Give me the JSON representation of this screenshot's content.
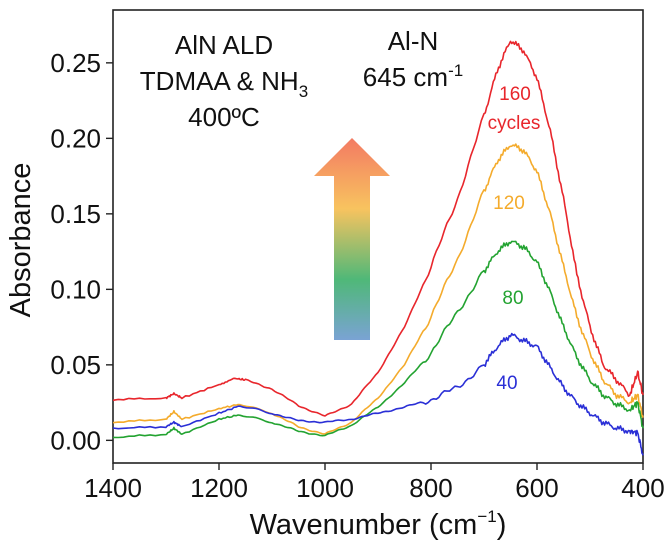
{
  "chart_data": {
    "type": "line",
    "xlabel": "Wavenumber (cm",
    "xlabel_sup": "−1",
    "xlabel_close": ")",
    "ylabel": "Absorbance",
    "xlim": [
      1400,
      400
    ],
    "ylim": [
      -0.015,
      0.285
    ],
    "x_reversed": true,
    "xticks": [
      1400,
      1200,
      1000,
      800,
      600,
      400
    ],
    "xtick_labels": [
      "1400",
      "1200",
      "1000",
      "800",
      "600",
      "400"
    ],
    "yticks": [
      0.0,
      0.05,
      0.1,
      0.15,
      0.2,
      0.25
    ],
    "ytick_labels": [
      "0.00",
      "0.05",
      "0.10",
      "0.15",
      "0.20",
      "0.25"
    ],
    "grid": false,
    "annotations": {
      "process_line1": "AlN ALD",
      "process_line2_main": "TDMAA & NH",
      "process_line2_sub": "3",
      "process_line3": "400ºC",
      "peak_line1": "Al-N",
      "peak_line2_main": "645 cm",
      "peak_line2_sup": "-1",
      "cycles_word": "cycles"
    },
    "arrow_gradient": [
      "#f37a63",
      "#f8c35f",
      "#4fb878",
      "#7aa3d4"
    ],
    "series": [
      {
        "name": "160",
        "color": "#e8262c",
        "x": [
          1400,
          1300,
          1285,
          1270,
          1200,
          1170,
          1150,
          1100,
          1050,
          1000,
          950,
          900,
          850,
          800,
          750,
          700,
          675,
          650,
          625,
          600,
          575,
          550,
          525,
          500,
          475,
          450,
          425,
          410,
          400
        ],
        "y": [
          0.027,
          0.028,
          0.031,
          0.028,
          0.037,
          0.041,
          0.04,
          0.034,
          0.023,
          0.016,
          0.024,
          0.045,
          0.075,
          0.115,
          0.16,
          0.215,
          0.245,
          0.265,
          0.258,
          0.24,
          0.205,
          0.16,
          0.11,
          0.075,
          0.05,
          0.04,
          0.03,
          0.045,
          0.03
        ]
      },
      {
        "name": "120",
        "color": "#f4ab2c",
        "x": [
          1400,
          1300,
          1285,
          1270,
          1200,
          1160,
          1100,
          1050,
          1000,
          950,
          900,
          850,
          800,
          750,
          700,
          675,
          650,
          625,
          600,
          575,
          550,
          525,
          500,
          475,
          450,
          425,
          410,
          400
        ],
        "y": [
          0.012,
          0.014,
          0.019,
          0.014,
          0.021,
          0.024,
          0.018,
          0.009,
          0.004,
          0.012,
          0.028,
          0.05,
          0.082,
          0.12,
          0.165,
          0.185,
          0.196,
          0.192,
          0.178,
          0.15,
          0.115,
          0.082,
          0.058,
          0.04,
          0.03,
          0.025,
          0.03,
          0.015
        ]
      },
      {
        "name": "80",
        "color": "#23a331",
        "x": [
          1400,
          1300,
          1285,
          1270,
          1200,
          1160,
          1100,
          1050,
          1000,
          950,
          900,
          850,
          800,
          750,
          700,
          675,
          650,
          625,
          600,
          575,
          550,
          525,
          500,
          475,
          450,
          425,
          410,
          400
        ],
        "y": [
          0.002,
          0.004,
          0.008,
          0.004,
          0.014,
          0.017,
          0.012,
          0.006,
          0.003,
          0.01,
          0.022,
          0.038,
          0.058,
          0.085,
          0.112,
          0.125,
          0.132,
          0.128,
          0.118,
          0.098,
          0.075,
          0.055,
          0.04,
          0.03,
          0.024,
          0.02,
          0.025,
          0.008
        ]
      },
      {
        "name": "40",
        "color": "#2a2fd6",
        "x": [
          1400,
          1300,
          1285,
          1270,
          1200,
          1160,
          1100,
          1050,
          1000,
          950,
          900,
          850,
          800,
          750,
          700,
          675,
          650,
          625,
          600,
          575,
          550,
          525,
          500,
          475,
          450,
          425,
          410,
          400
        ],
        "y": [
          0.008,
          0.009,
          0.012,
          0.009,
          0.018,
          0.023,
          0.018,
          0.013,
          0.012,
          0.014,
          0.018,
          0.022,
          0.027,
          0.035,
          0.05,
          0.062,
          0.07,
          0.066,
          0.062,
          0.048,
          0.035,
          0.025,
          0.018,
          0.012,
          0.008,
          0.006,
          0.005,
          -0.01
        ]
      }
    ]
  }
}
